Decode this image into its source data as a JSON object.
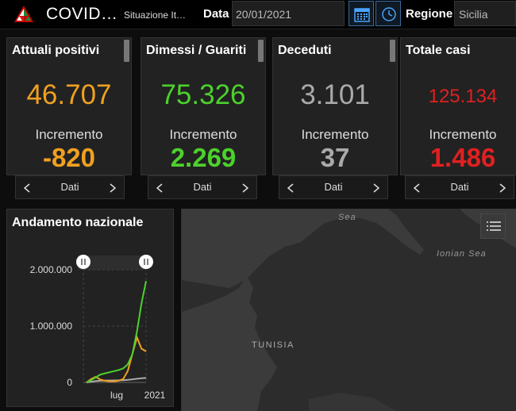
{
  "header": {
    "title": "COVID…",
    "subtitle": "Situazione It…",
    "date_label": "Data",
    "date_value": "20/01/2021",
    "region_label": "Regione",
    "region_value": "Sicilia"
  },
  "cards": [
    {
      "title": "Attuali positivi",
      "value": "46.707",
      "increment_label": "Incremento",
      "increment_value": "-820",
      "color": "#f0a020"
    },
    {
      "title": "Dimessi / Guariti",
      "value": "75.326",
      "increment_label": "Incremento",
      "increment_value": "2.269",
      "color": "#4cd12c"
    },
    {
      "title": "Deceduti",
      "value": "3.101",
      "increment_label": "Incremento",
      "increment_value": "37",
      "color": "#aaaaaa"
    },
    {
      "title": "Totale casi",
      "value": "125.134",
      "increment_label": "Incremento",
      "increment_value": "1.486",
      "color": "#e02020"
    }
  ],
  "pager_label": "Dati",
  "trend": {
    "title": "Andamento nazionale",
    "chart_data": {
      "type": "line",
      "y_ticks": [
        "2.000.000",
        "1.000.000",
        "0"
      ],
      "x_ticks": [
        "lug",
        "2021"
      ],
      "ylim": [
        0,
        2000000
      ],
      "series": [
        {
          "color": "#4cd12c",
          "values": [
            0,
            40000,
            90000,
            140000,
            160000,
            180000,
            200000,
            220000,
            250000,
            320000,
            500000,
            900000,
            1400000,
            1800000
          ]
        },
        {
          "color": "#f0a020",
          "values": [
            0,
            60000,
            100000,
            50000,
            30000,
            20000,
            20000,
            30000,
            60000,
            200000,
            500000,
            800000,
            600000,
            550000
          ]
        },
        {
          "color": "#aaaaaa",
          "values": [
            0,
            10000,
            25000,
            32000,
            34000,
            35000,
            35000,
            36000,
            38000,
            45000,
            55000,
            65000,
            75000,
            82000
          ]
        }
      ]
    }
  },
  "map": {
    "labels": {
      "sea": "Sea",
      "ionian": "Ionian Sea",
      "tunisia": "TUNISIA"
    }
  }
}
